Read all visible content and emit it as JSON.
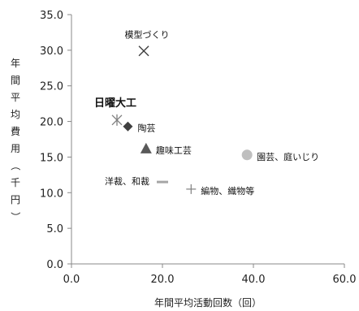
{
  "chart_data": {
    "type": "scatter",
    "xlabel": "年間平均活動回数（回）",
    "ylabel": "年間平均費用（千円）",
    "xlim": [
      0,
      60
    ],
    "ylim": [
      0,
      35
    ],
    "x_ticks": [
      "0.0",
      "20.0",
      "40.0",
      "60.0"
    ],
    "y_ticks": [
      "0.0",
      "5.0",
      "10.0",
      "15.0",
      "20.0",
      "25.0",
      "30.0",
      "35.0"
    ],
    "grid": false,
    "points": [
      {
        "label": "模型づくり",
        "x": 15.9,
        "y": 29.9,
        "marker": "x",
        "color": "#404040",
        "label_pos": "above"
      },
      {
        "label": "日曜大工",
        "x": 10.0,
        "y": 20.2,
        "marker": "asterisk",
        "color": "#7f7f7f",
        "label_pos": "above-left",
        "bold": true
      },
      {
        "label": "陶芸",
        "x": 12.4,
        "y": 19.3,
        "marker": "diamond",
        "color": "#404040",
        "label_pos": "right"
      },
      {
        "label": "趣味工芸",
        "x": 16.4,
        "y": 16.2,
        "marker": "triangle",
        "color": "#595959",
        "label_pos": "right"
      },
      {
        "label": "園芸、庭いじり",
        "x": 38.6,
        "y": 15.3,
        "marker": "circle",
        "color": "#bfbfbf",
        "label_pos": "right"
      },
      {
        "label": "洋裁、和裁",
        "x": 20.0,
        "y": 11.5,
        "marker": "dash",
        "color": "#a6a6a6",
        "label_pos": "left"
      },
      {
        "label": "編物、織物等",
        "x": 26.3,
        "y": 10.5,
        "marker": "plus",
        "color": "#7f7f7f",
        "label_pos": "right"
      }
    ]
  }
}
